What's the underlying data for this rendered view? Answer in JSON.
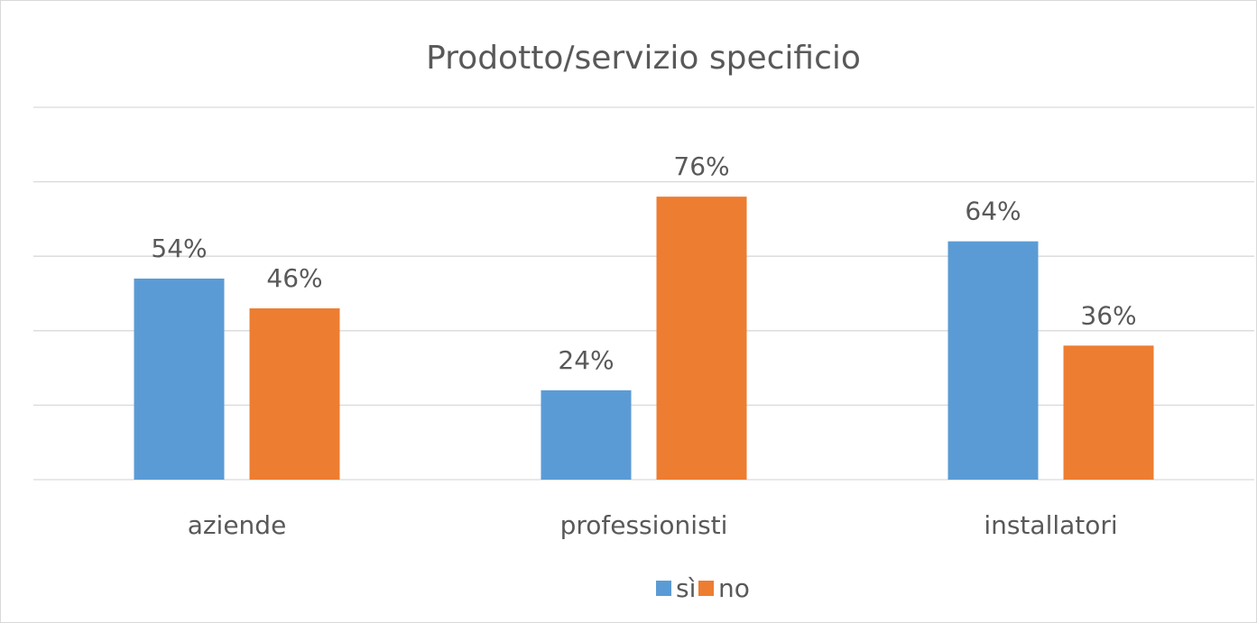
{
  "chart_data": {
    "type": "bar",
    "title": "Prodotto/servizio specificio",
    "categories": [
      "aziende",
      "professionisti",
      "installatori"
    ],
    "series": [
      {
        "name": "sì",
        "color": "#5b9bd5",
        "values": [
          54,
          24,
          64
        ],
        "value_labels": [
          "54%",
          "24%",
          "64%"
        ]
      },
      {
        "name": "no",
        "color": "#ed7d31",
        "values": [
          46,
          76,
          36
        ],
        "value_labels": [
          "46%",
          "76%",
          "36%"
        ]
      }
    ],
    "ylim": [
      0,
      100
    ],
    "yticks": [
      0,
      20,
      40,
      60,
      80,
      100
    ],
    "grid": true,
    "legend": "bottom"
  }
}
